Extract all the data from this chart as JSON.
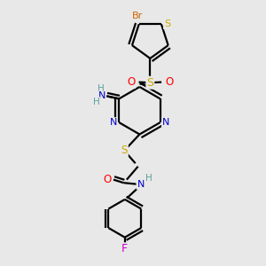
{
  "background_color": "#e8e8e8",
  "bond_color": "#000000",
  "bond_width": 1.6,
  "colors": {
    "N": "#0000cc",
    "O": "#ff0000",
    "S": "#ccaa00",
    "Br": "#cc6600",
    "F": "#cc00cc",
    "H": "#5f9ea0",
    "C": "#000000"
  },
  "layout": {
    "xlim": [
      0,
      1
    ],
    "ylim": [
      0,
      1
    ]
  }
}
